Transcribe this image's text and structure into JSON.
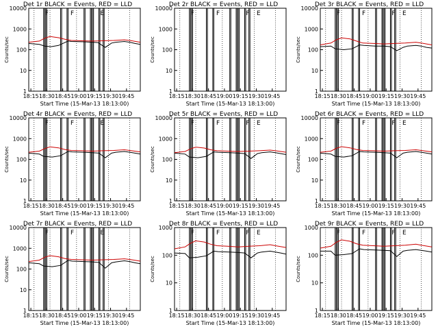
{
  "chart_data": [
    {
      "type": "line",
      "title": "Det 1r BLACK = Events, RED = LLD",
      "xlabel": "Start Time (15-Mar-13 18:13:00)",
      "ylabel": "Counts/sec",
      "x_ticks": [
        "18:15",
        "18:30",
        "18:45",
        "19:00",
        "19:15",
        "19:30",
        "19:45"
      ],
      "y_ticks": [
        "1",
        "10",
        "100",
        "1000",
        "10000"
      ],
      "xlim_min": [
        0,
        105
      ],
      "ylim": [
        1,
        10000
      ],
      "flag_labels": [
        "F",
        "F",
        "E"
      ],
      "series": [
        {
          "name": "Events",
          "color": "#000000",
          "x": [
            0,
            10,
            15,
            21,
            28,
            37,
            40,
            52,
            60,
            65,
            72,
            78,
            82,
            90,
            95,
            100,
            105
          ],
          "values": [
            200,
            180,
            150,
            140,
            160,
            260,
            250,
            240,
            230,
            220,
            130,
            210,
            230,
            250,
            230,
            200,
            180
          ]
        },
        {
          "name": "LLD",
          "color": "#cc0000",
          "x": [
            0,
            10,
            15,
            20,
            28,
            34,
            40,
            50,
            60,
            70,
            80,
            90,
            95,
            105
          ],
          "values": [
            230,
            260,
            360,
            430,
            380,
            320,
            280,
            270,
            260,
            270,
            280,
            300,
            280,
            230
          ]
        }
      ]
    },
    {
      "type": "line",
      "title": "Det 2r BLACK = Events, RED = LLD",
      "xlabel": "Start Time (15-Mar-13 18:13:00)",
      "ylabel": "Counts/sec",
      "x_ticks": [
        "18:15",
        "18:30",
        "18:45",
        "19:00",
        "19:15",
        "19:30",
        "19:45"
      ],
      "y_ticks": [
        "1",
        "10",
        "100",
        "1000",
        "10000"
      ],
      "xlim_min": [
        0,
        105
      ],
      "ylim": [
        1,
        10000
      ],
      "flag_labels": [
        "F",
        "F",
        "F",
        "E"
      ],
      "series": []
    },
    {
      "type": "line",
      "title": "Det 3r BLACK = Events, RED = LLD",
      "xlabel": "Start Time (15-Mar-13 18:13:00)",
      "ylabel": "Counts/sec",
      "x_ticks": [
        "18:15",
        "18:30",
        "18:45",
        "19:00",
        "19:15",
        "19:30",
        "19:45"
      ],
      "y_ticks": [
        "1",
        "10",
        "100",
        "1000",
        "10000"
      ],
      "xlim_min": [
        0,
        105
      ],
      "ylim": [
        1,
        10000
      ],
      "flag_labels": [
        "F",
        "F",
        "F",
        "E"
      ],
      "series": [
        {
          "name": "Events",
          "color": "#000000",
          "x": [
            0,
            10,
            14,
            22,
            30,
            37,
            41,
            52,
            60,
            66,
            72,
            78,
            82,
            90,
            95,
            100,
            105
          ],
          "values": [
            140,
            150,
            110,
            100,
            110,
            170,
            160,
            150,
            150,
            140,
            90,
            130,
            150,
            160,
            150,
            130,
            120
          ]
        },
        {
          "name": "LLD",
          "color": "#cc0000",
          "x": [
            0,
            10,
            15,
            20,
            28,
            34,
            40,
            50,
            60,
            70,
            80,
            90,
            95,
            105
          ],
          "values": [
            170,
            210,
            300,
            370,
            330,
            260,
            210,
            200,
            190,
            200,
            210,
            230,
            210,
            170
          ]
        }
      ]
    },
    {
      "type": "line",
      "title": "Det 4r BLACK = Events, RED = LLD",
      "xlabel": "Start Time (15-Mar-13 18:13:00)",
      "ylabel": "Counts/sec",
      "x_ticks": [
        "18:15",
        "18:30",
        "18:45",
        "19:00",
        "19:15",
        "19:30",
        "19:45"
      ],
      "y_ticks": [
        "1",
        "10",
        "100",
        "1000",
        "10000"
      ],
      "xlim_min": [
        0,
        105
      ],
      "ylim": [
        1,
        10000
      ],
      "flag_labels": [
        "F",
        "F",
        "E"
      ],
      "series": [
        {
          "name": "Events",
          "color": "#000000",
          "x": [
            0,
            10,
            14,
            22,
            30,
            37,
            41,
            52,
            60,
            66,
            72,
            78,
            82,
            90,
            95,
            100,
            105
          ],
          "values": [
            200,
            180,
            140,
            130,
            150,
            240,
            230,
            220,
            210,
            200,
            120,
            200,
            220,
            240,
            220,
            200,
            180
          ]
        },
        {
          "name": "LLD",
          "color": "#cc0000",
          "x": [
            0,
            10,
            15,
            20,
            28,
            34,
            40,
            50,
            60,
            70,
            80,
            90,
            95,
            105
          ],
          "values": [
            220,
            250,
            330,
            400,
            360,
            300,
            270,
            260,
            250,
            260,
            270,
            290,
            270,
            230
          ]
        }
      ]
    },
    {
      "type": "line",
      "title": "Det 5r BLACK = Events, RED = LLD",
      "xlabel": "Start Time (15-Mar-13 18:13:00)",
      "ylabel": "Counts/sec",
      "x_ticks": [
        "18:15",
        "18:30",
        "18:45",
        "19:00",
        "19:15",
        "19:30",
        "19:45"
      ],
      "y_ticks": [
        "1",
        "10",
        "100",
        "1000",
        "10000"
      ],
      "xlim_min": [
        0,
        105
      ],
      "ylim": [
        1,
        10000
      ],
      "flag_labels": [
        "F",
        "F",
        "F",
        "E"
      ],
      "series": [
        {
          "name": "Events",
          "color": "#000000",
          "x": [
            0,
            10,
            14,
            22,
            30,
            37,
            41,
            52,
            60,
            66,
            72,
            78,
            82,
            90,
            95,
            100,
            105
          ],
          "values": [
            200,
            180,
            130,
            120,
            140,
            230,
            220,
            210,
            200,
            190,
            110,
            190,
            210,
            230,
            210,
            190,
            170
          ]
        },
        {
          "name": "LLD",
          "color": "#cc0000",
          "x": [
            0,
            10,
            15,
            20,
            28,
            34,
            40,
            50,
            60,
            70,
            80,
            90,
            95,
            105
          ],
          "values": [
            210,
            240,
            320,
            390,
            350,
            290,
            260,
            250,
            240,
            250,
            260,
            280,
            260,
            220
          ]
        }
      ]
    },
    {
      "type": "line",
      "title": "Det 6r BLACK = Events, RED = LLD",
      "xlabel": "Start Time (15-Mar-13 18:13:00)",
      "ylabel": "Counts/sec",
      "x_ticks": [
        "18:15",
        "18:30",
        "18:45",
        "19:00",
        "19:15",
        "19:30",
        "19:45"
      ],
      "y_ticks": [
        "1",
        "10",
        "100",
        "1000",
        "10000"
      ],
      "xlim_min": [
        0,
        105
      ],
      "ylim": [
        1,
        10000
      ],
      "flag_labels": [
        "F",
        "F",
        "F",
        "E"
      ],
      "series": [
        {
          "name": "Events",
          "color": "#000000",
          "x": [
            0,
            10,
            14,
            22,
            30,
            37,
            41,
            52,
            60,
            66,
            72,
            78,
            82,
            90,
            95,
            100,
            105
          ],
          "values": [
            200,
            180,
            140,
            130,
            150,
            240,
            230,
            220,
            210,
            200,
            120,
            200,
            220,
            240,
            220,
            200,
            180
          ]
        },
        {
          "name": "LLD",
          "color": "#cc0000",
          "x": [
            0,
            10,
            15,
            20,
            28,
            34,
            40,
            50,
            60,
            70,
            80,
            90,
            95,
            105
          ],
          "values": [
            220,
            250,
            340,
            410,
            360,
            300,
            270,
            260,
            250,
            260,
            270,
            290,
            270,
            230
          ]
        }
      ]
    },
    {
      "type": "line",
      "title": "Det 7r BLACK = Events, RED = LLD",
      "xlabel": "Start Time (15-Mar-13 18:13:00)",
      "ylabel": "Counts/sec",
      "x_ticks": [
        "18:15",
        "18:30",
        "18:45",
        "19:00",
        "19:15",
        "19:30",
        "19:45"
      ],
      "y_ticks": [
        "1",
        "10",
        "100",
        "1000",
        "10000"
      ],
      "xlim_min": [
        0,
        105
      ],
      "ylim": [
        1,
        10000
      ],
      "flag_labels": [
        "F",
        "F",
        "E"
      ],
      "series": [
        {
          "name": "Events",
          "color": "#000000",
          "x": [
            0,
            10,
            14,
            22,
            30,
            37,
            41,
            52,
            60,
            66,
            72,
            78,
            82,
            90,
            95,
            100,
            105
          ],
          "values": [
            200,
            180,
            140,
            130,
            150,
            260,
            240,
            230,
            220,
            210,
            110,
            200,
            220,
            250,
            230,
            200,
            180
          ]
        },
        {
          "name": "LLD",
          "color": "#cc0000",
          "x": [
            0,
            10,
            15,
            20,
            28,
            34,
            40,
            50,
            60,
            70,
            80,
            90,
            95,
            105
          ],
          "values": [
            230,
            270,
            370,
            440,
            390,
            320,
            290,
            280,
            270,
            280,
            290,
            310,
            290,
            240
          ]
        }
      ]
    },
    {
      "type": "line",
      "title": "Det 8r BLACK = Events, RED = LLD",
      "xlabel": "Start Time (15-Mar-13 18:13:00)",
      "ylabel": "Counts/sec",
      "x_ticks": [
        "18:15",
        "18:30",
        "18:45",
        "19:00",
        "19:15",
        "19:30",
        "19:45"
      ],
      "y_ticks": [
        "1",
        "10",
        "100",
        "1000",
        "10000"
      ],
      "xlim_min": [
        0,
        105
      ],
      "ylim": [
        1,
        1000
      ],
      "flag_labels": [
        "F",
        "F",
        "F",
        "E"
      ],
      "series": [
        {
          "name": "Events",
          "color": "#000000",
          "x": [
            0,
            10,
            14,
            22,
            30,
            37,
            41,
            52,
            60,
            66,
            72,
            78,
            82,
            90,
            95,
            100,
            105
          ],
          "values": [
            120,
            115,
            80,
            85,
            95,
            140,
            135,
            130,
            125,
            120,
            80,
            120,
            130,
            140,
            130,
            120,
            110
          ]
        },
        {
          "name": "LLD",
          "color": "#cc0000",
          "x": [
            0,
            10,
            15,
            20,
            28,
            34,
            40,
            50,
            60,
            70,
            80,
            90,
            95,
            105
          ],
          "values": [
            170,
            200,
            270,
            330,
            300,
            250,
            220,
            210,
            200,
            210,
            220,
            240,
            220,
            190
          ]
        }
      ]
    },
    {
      "type": "line",
      "title": "Det 9r BLACK = Events, RED = LLD",
      "xlabel": "Start Time (15-Mar-13 18:13:00)",
      "ylabel": "Counts/sec",
      "x_ticks": [
        "18:15",
        "18:30",
        "18:45",
        "19:00",
        "19:15",
        "19:30",
        "19:45"
      ],
      "y_ticks": [
        "1",
        "10",
        "100",
        "1000",
        "10000"
      ],
      "xlim_min": [
        0,
        105
      ],
      "ylim": [
        1,
        1000
      ],
      "flag_labels": [
        "F",
        "F",
        "F",
        "E"
      ],
      "series": [
        {
          "name": "Events",
          "color": "#000000",
          "x": [
            0,
            10,
            14,
            22,
            30,
            37,
            41,
            52,
            60,
            66,
            72,
            78,
            82,
            90,
            95,
            100,
            105
          ],
          "values": [
            140,
            140,
            100,
            105,
            115,
            170,
            160,
            155,
            150,
            145,
            90,
            140,
            150,
            160,
            150,
            140,
            130
          ]
        },
        {
          "name": "LLD",
          "color": "#cc0000",
          "x": [
            0,
            10,
            15,
            20,
            28,
            34,
            40,
            50,
            60,
            70,
            80,
            90,
            95,
            105
          ],
          "values": [
            180,
            210,
            290,
            360,
            320,
            260,
            230,
            220,
            210,
            220,
            230,
            250,
            230,
            200
          ]
        }
      ]
    }
  ]
}
